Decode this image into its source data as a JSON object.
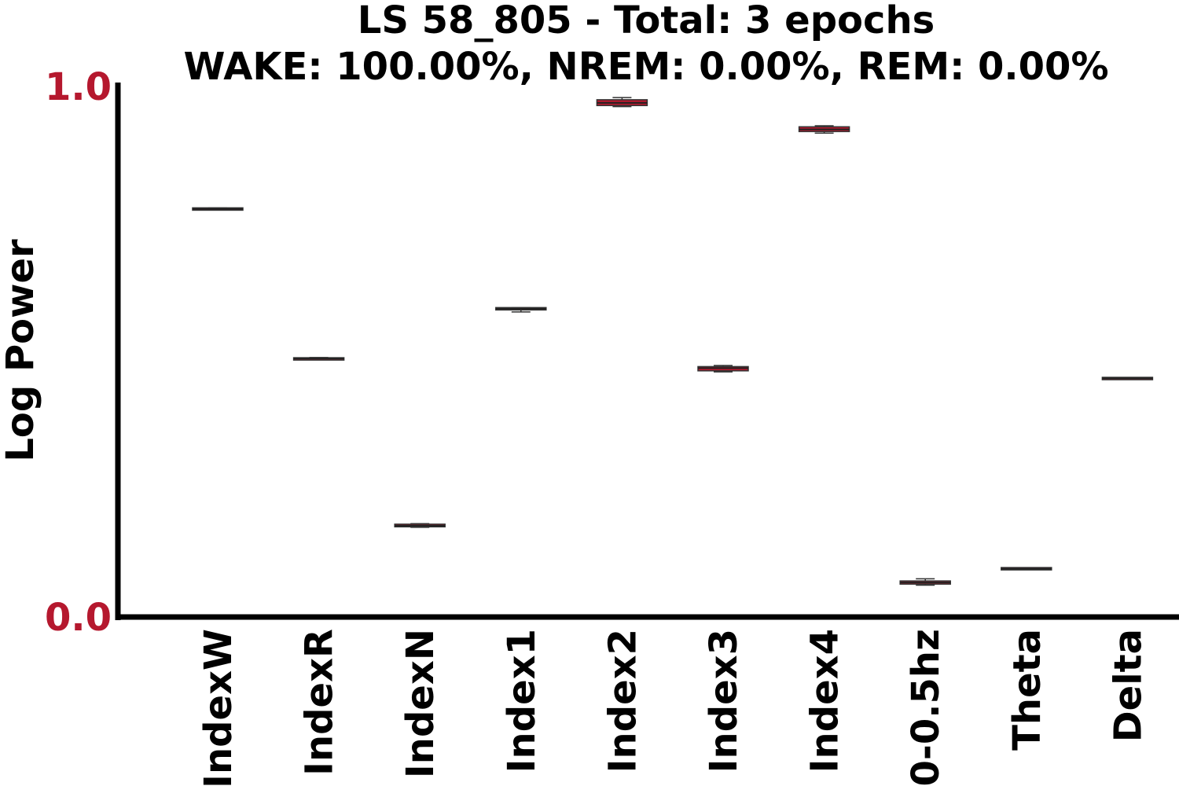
{
  "chart_data": {
    "type": "box",
    "title": "LS 58_805 - Total: 3 epochs",
    "subtitle": "WAKE: 100.00%, NREM: 0.00%, REM: 0.00%",
    "xlabel": "",
    "ylabel": "Log Power",
    "ylim": [
      0.0,
      1.0
    ],
    "yticks": [
      "0.0",
      "1.0"
    ],
    "tick_color": "#b5182e",
    "box_color": "#b5182e",
    "grid": false,
    "categories": [
      "IndexW",
      "IndexR",
      "IndexN",
      "Index1",
      "Index2",
      "Index3",
      "Index4",
      "0-0.5hz",
      "Theta",
      "Delta"
    ],
    "boxes": [
      {
        "min": 0.768,
        "q1": 0.768,
        "median": 0.769,
        "q3": 0.77,
        "max": 0.771
      },
      {
        "min": 0.485,
        "q1": 0.485,
        "median": 0.487,
        "q3": 0.488,
        "max": 0.489
      },
      {
        "min": 0.169,
        "q1": 0.17,
        "median": 0.172,
        "q3": 0.175,
        "max": 0.176
      },
      {
        "min": 0.575,
        "q1": 0.579,
        "median": 0.581,
        "q3": 0.583,
        "max": 0.583
      },
      {
        "min": 0.962,
        "q1": 0.964,
        "median": 0.969,
        "q3": 0.975,
        "max": 0.979
      },
      {
        "min": 0.462,
        "q1": 0.464,
        "median": 0.469,
        "q3": 0.472,
        "max": 0.474
      },
      {
        "min": 0.912,
        "q1": 0.915,
        "median": 0.919,
        "q3": 0.924,
        "max": 0.926
      },
      {
        "min": 0.06,
        "q1": 0.062,
        "median": 0.065,
        "q3": 0.068,
        "max": 0.072
      },
      {
        "min": 0.09,
        "q1": 0.09,
        "median": 0.091,
        "q3": 0.092,
        "max": 0.092
      },
      {
        "min": 0.449,
        "q1": 0.449,
        "median": 0.45,
        "q3": 0.45,
        "max": 0.451
      }
    ]
  }
}
